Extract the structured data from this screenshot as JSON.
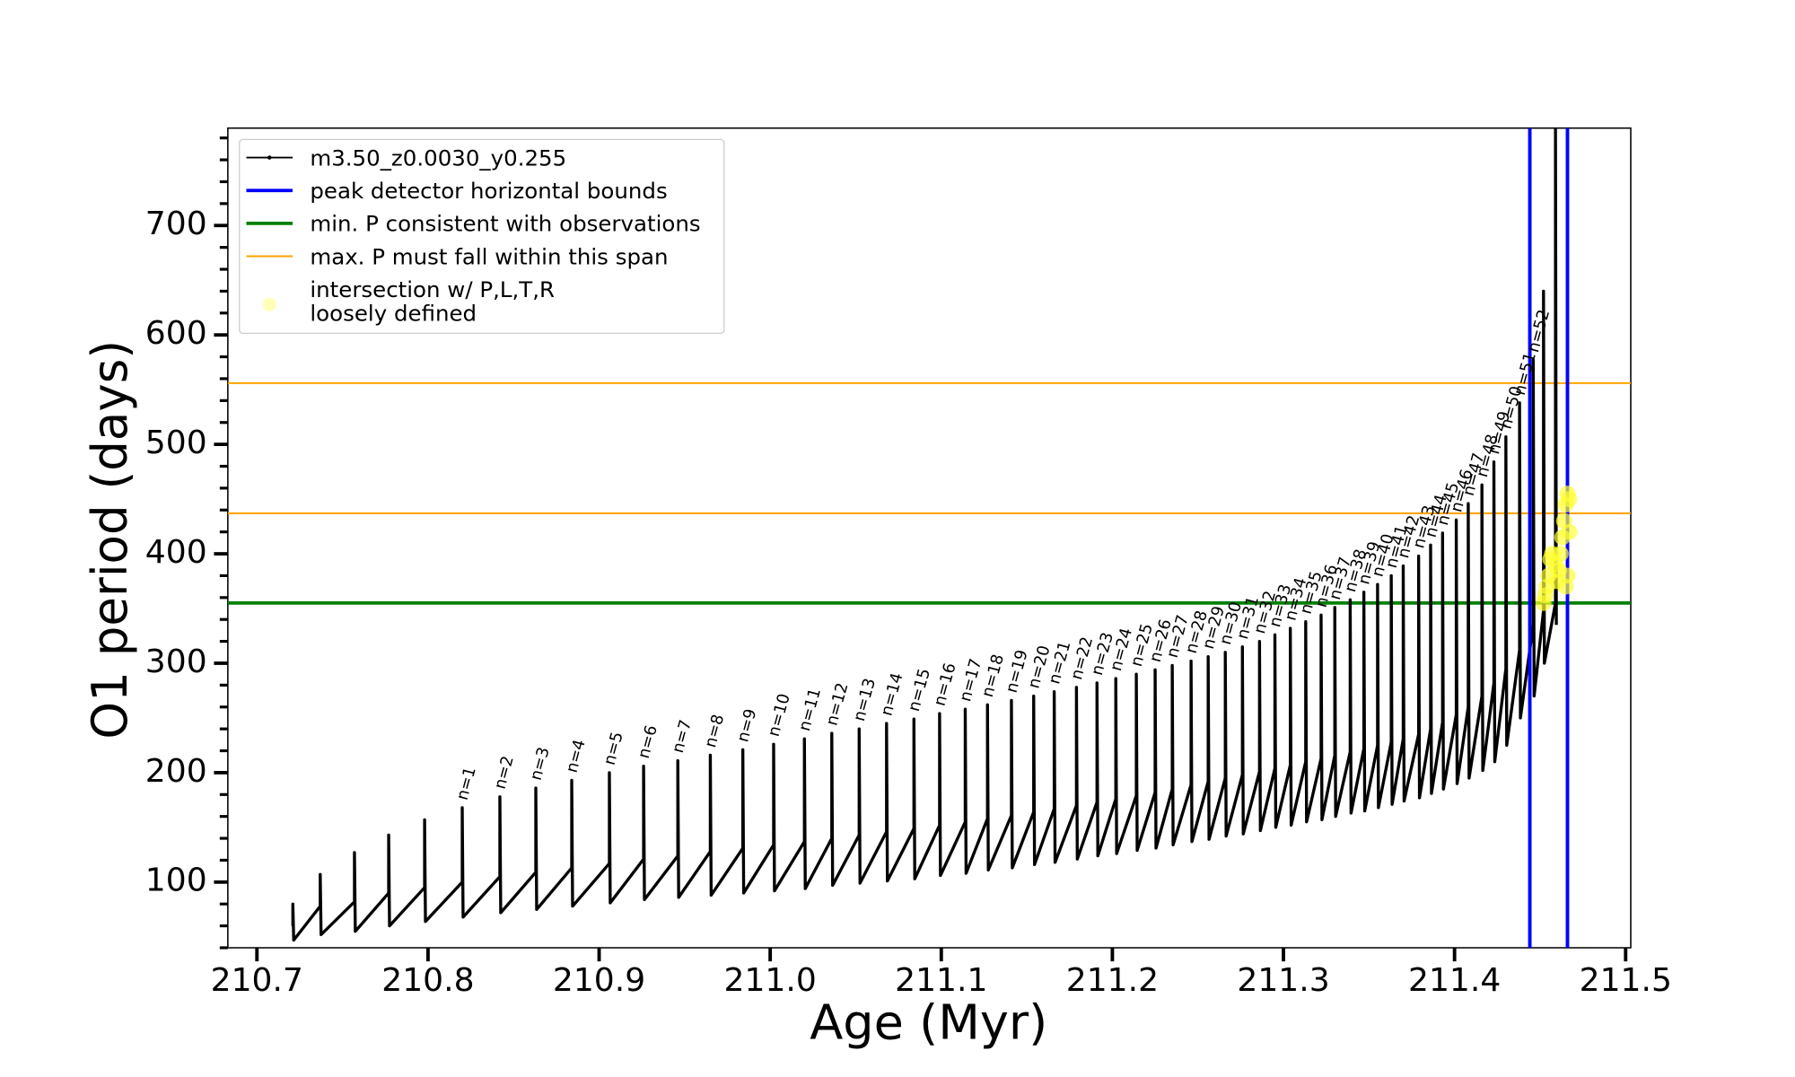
{
  "chart_data": {
    "type": "line",
    "xlabel": "Age (Myr)",
    "ylabel": "O1 period (days)",
    "xlim": [
      210.683,
      211.503
    ],
    "ylim": [
      40,
      789
    ],
    "xticks": [
      210.7,
      210.8,
      210.9,
      {
        "value": 211,
        "label": "211.0"
      },
      211.1,
      211.2,
      211.3,
      211.4,
      211.5
    ],
    "yticks": [
      100,
      200,
      300,
      400,
      500,
      600,
      700
    ],
    "yminorticks": [
      40,
      60,
      80,
      120,
      140,
      160,
      180,
      220,
      240,
      260,
      280,
      320,
      340,
      360,
      380,
      420,
      440,
      460,
      480,
      520,
      540,
      560,
      580,
      620,
      640,
      660,
      680,
      720,
      740,
      760,
      780
    ],
    "legend": "upper left",
    "series": [
      {
        "name": "m3.50_z0.0030_y0.255",
        "color": "#000000",
        "x": [
          210.721,
          210.721,
          210.7215,
          210.737,
          210.737,
          210.7375,
          210.757,
          210.757,
          210.7575,
          210.777,
          210.777,
          210.7775,
          210.798,
          210.798,
          210.7985,
          210.82,
          210.82,
          210.8205,
          210.842,
          210.842,
          210.8425,
          210.863,
          210.863,
          210.8635,
          210.884,
          210.884,
          210.8845,
          210.906,
          210.906,
          210.9065,
          210.926,
          210.926,
          210.9265,
          210.946,
          210.946,
          210.9465,
          210.965,
          210.965,
          210.9655,
          210.984,
          210.984,
          210.9845,
          211.002,
          211.002,
          211.0025,
          211.02,
          211.02,
          211.0205,
          211.036,
          211.036,
          211.0365,
          211.052,
          211.052,
          211.0525,
          211.068,
          211.068,
          211.0685,
          211.084,
          211.084,
          211.0845,
          211.099,
          211.099,
          211.0995,
          211.114,
          211.114,
          211.1145,
          211.127,
          211.127,
          211.1275,
          211.141,
          211.141,
          211.1415,
          211.154,
          211.154,
          211.1545,
          211.166,
          211.166,
          211.1665,
          211.179,
          211.179,
          211.1795,
          211.191,
          211.191,
          211.1915,
          211.202,
          211.202,
          211.2025,
          211.214,
          211.214,
          211.2145,
          211.225,
          211.225,
          211.2255,
          211.235,
          211.235,
          211.2355,
          211.246,
          211.246,
          211.2465,
          211.256,
          211.256,
          211.2565,
          211.266,
          211.266,
          211.2665,
          211.276,
          211.276,
          211.2765,
          211.286,
          211.286,
          211.2865,
          211.295,
          211.295,
          211.2955,
          211.304,
          211.304,
          211.3045,
          211.313,
          211.313,
          211.3135,
          211.322,
          211.322,
          211.3225,
          211.33,
          211.33,
          211.3305,
          211.339,
          211.339,
          211.3395,
          211.347,
          211.347,
          211.3475,
          211.355,
          211.355,
          211.3555,
          211.363,
          211.363,
          211.3635,
          211.37,
          211.37,
          211.3705,
          211.379,
          211.379,
          211.3795,
          211.386,
          211.386,
          211.3865,
          211.393,
          211.393,
          211.3935,
          211.401,
          211.401,
          211.4015,
          211.408,
          211.408,
          211.4085,
          211.416,
          211.416,
          211.4165,
          211.423,
          211.423,
          211.4235,
          211.43,
          211.43,
          211.4305,
          211.438,
          211.438,
          211.4385,
          211.446,
          211.446,
          211.4465,
          211.452,
          211.452,
          211.4525,
          211.459,
          211.459,
          211.4595
        ],
        "values": [
          60,
          80,
          47,
          78,
          107,
          52,
          82,
          127,
          55,
          90,
          143,
          60,
          95,
          157,
          64,
          100,
          168,
          68,
          105,
          178,
          72,
          109,
          186,
          75,
          113,
          193,
          78,
          117,
          200,
          81,
          121,
          206,
          84,
          124,
          211,
          86,
          128,
          216,
          88,
          131,
          221,
          90,
          134,
          226,
          92,
          137,
          231,
          94,
          140,
          236,
          97,
          143,
          240,
          99,
          146,
          245,
          101,
          149,
          249,
          103,
          152,
          254,
          106,
          155,
          258,
          108,
          158,
          262,
          111,
          161,
          266,
          113,
          164,
          270,
          116,
          167,
          274,
          118,
          170,
          278,
          121,
          173,
          282,
          124,
          176,
          286,
          126,
          179,
          290,
          129,
          182,
          294,
          131,
          185,
          298,
          134,
          189,
          302,
          137,
          192,
          306,
          139,
          195,
          310,
          142,
          198,
          315,
          144,
          201,
          320,
          147,
          204,
          326,
          150,
          207,
          332,
          152,
          210,
          338,
          155,
          213,
          344,
          157,
          216,
          351,
          160,
          219,
          358,
          163,
          222,
          365,
          165,
          225,
          372,
          168,
          228,
          380,
          171,
          231,
          389,
          174,
          235,
          398,
          177,
          240,
          408,
          181,
          246,
          419,
          185,
          253,
          431,
          190,
          260,
          446,
          195,
          270,
          463,
          202,
          282,
          484,
          210,
          295,
          507,
          225,
          312,
          538,
          250,
          335,
          577,
          270,
          348,
          640,
          300,
          355,
          790,
          335
        ],
        "point_labels": [
          null,
          null,
          null,
          null,
          null,
          null,
          null,
          null,
          null,
          null,
          null,
          null,
          null,
          null,
          null,
          null,
          "n=1",
          null,
          null,
          "n=2",
          null,
          null,
          "n=3",
          null,
          null,
          "n=4",
          null,
          null,
          "n=5",
          null,
          null,
          "n=6",
          null,
          null,
          "n=7",
          null,
          null,
          "n=8",
          null,
          null,
          "n=9",
          null,
          null,
          "n=10",
          null,
          null,
          "n=11",
          null,
          null,
          "n=12",
          null,
          null,
          "n=13",
          null,
          null,
          "n=14",
          null,
          null,
          "n=15",
          null,
          null,
          "n=16",
          null,
          null,
          "n=17",
          null,
          null,
          "n=18",
          null,
          null,
          "n=19",
          null,
          null,
          "n=20",
          null,
          null,
          "n=21",
          null,
          null,
          "n=22",
          null,
          null,
          "n=23",
          null,
          null,
          "n=24",
          null,
          null,
          "n=25",
          null,
          null,
          "n=26",
          null,
          null,
          "n=27",
          null,
          null,
          "n=28",
          null,
          null,
          "n=29",
          null,
          null,
          "n=30",
          null,
          null,
          "n=31",
          null,
          null,
          "n=32",
          null,
          null,
          "n=33",
          null,
          null,
          "n=34",
          null,
          null,
          "n=35",
          null,
          null,
          "n=36",
          null,
          null,
          "n=37",
          null,
          null,
          "n=38",
          null,
          null,
          "n=39",
          null,
          null,
          "n=40",
          null,
          null,
          "n=41",
          null,
          null,
          "n=42",
          null,
          null,
          "n=43",
          null,
          null,
          "n=44",
          null,
          null,
          "n=45",
          null,
          null,
          "n=46",
          null,
          null,
          "n=47",
          null,
          null,
          "n=48",
          null,
          null,
          "n=49",
          null,
          null,
          "n=50",
          null,
          null,
          "n=51",
          null,
          null,
          "n=52",
          null,
          null,
          null,
          null,
          null,
          null,
          null
        ]
      }
    ],
    "vlines": {
      "name": "peak detector horizontal bounds",
      "color": "#0000ff",
      "x": [
        211.444,
        211.466
      ]
    },
    "hlines": [
      {
        "name": "min. P consistent with observations",
        "color": "#008000",
        "values": [
          355
        ]
      },
      {
        "name": "max. P must fall within this span",
        "color": "#ffa500",
        "values": [
          437,
          556
        ]
      }
    ],
    "scatter": {
      "name": "intersection w/ P,L,T,R\nloosely defined",
      "color": "#ffff33",
      "x": [
        211.452,
        211.453,
        211.454,
        211.455,
        211.456,
        211.457,
        211.459,
        211.46,
        211.461,
        211.462,
        211.463,
        211.464,
        211.465,
        211.466,
        211.467,
        211.467,
        211.466,
        211.465
      ],
      "values": [
        355,
        362,
        370,
        380,
        395,
        400,
        390,
        375,
        385,
        400,
        415,
        430,
        445,
        455,
        450,
        420,
        380,
        370
      ]
    }
  }
}
